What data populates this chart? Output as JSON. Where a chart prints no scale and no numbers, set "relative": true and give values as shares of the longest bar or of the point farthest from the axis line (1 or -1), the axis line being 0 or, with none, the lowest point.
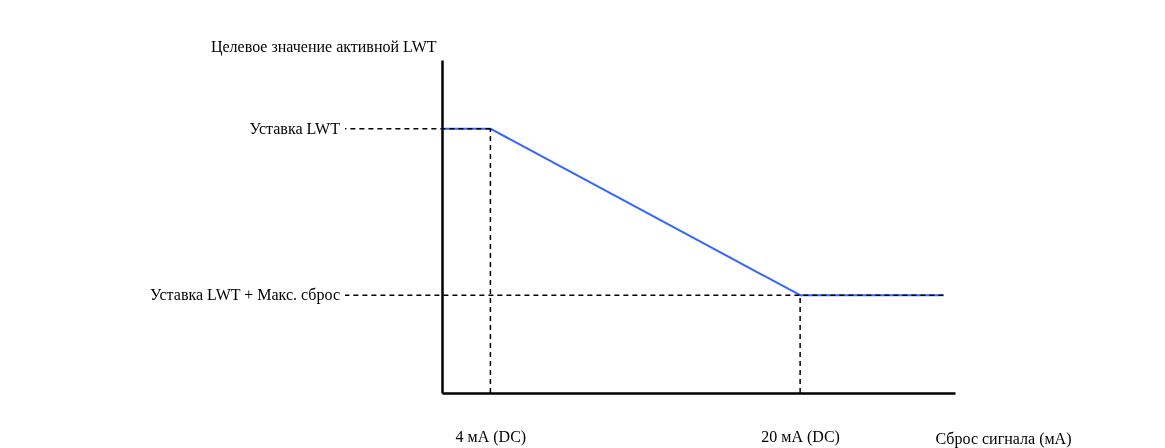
{
  "chart_data": {
    "type": "line",
    "relative": true,
    "xlabel": "Сброс сигнала (мА)",
    "ylabel": "Целевое значение активной LWT",
    "xlim": [
      1.5,
      28
    ],
    "xticks": [
      {
        "value": 4,
        "label": "4 мА (DC)"
      },
      {
        "value": 20,
        "label": "20 мА (DC)"
      }
    ],
    "x": [
      1.5,
      4,
      20,
      27.4
    ],
    "series": [
      {
        "color": "#3366ff",
        "values": [
          1,
          1,
          0.37,
          0.37
        ]
      }
    ],
    "ref_lines": [
      {
        "axis": "y",
        "value": 1,
        "label": "Уставка LWT",
        "line_style": "dashed",
        "color": "#000000"
      },
      {
        "axis": "y",
        "value": 0.37,
        "label": "Уставка LWT + Макс. сброс",
        "line_style": "dashed",
        "color": "#000000"
      },
      {
        "axis": "x",
        "value": 4,
        "line_style": "dashed",
        "color": "#000000"
      },
      {
        "axis": "x",
        "value": 20,
        "line_style": "dashed",
        "color": "#000000"
      }
    ],
    "grid": false,
    "marker": "none",
    "line_style": "solid"
  }
}
